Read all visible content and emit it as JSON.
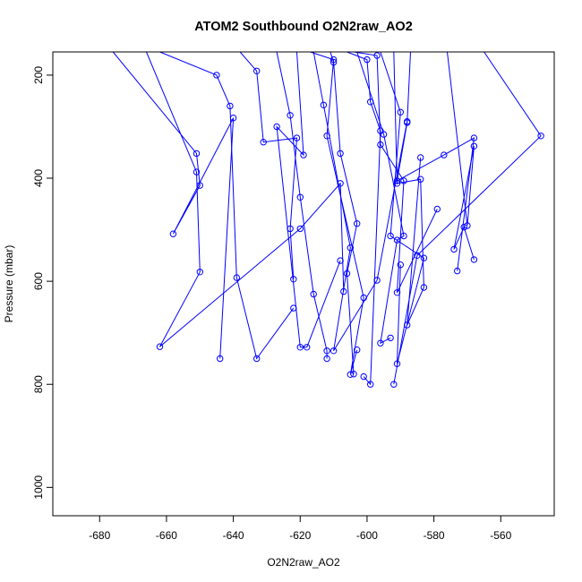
{
  "chart_data": {
    "type": "line",
    "title": "ATOM2 Southbound O2N2raw_AO2",
    "xlabel": "O2N2raw_AO2",
    "ylabel": "Pressure (mbar)",
    "xlim": [
      -694,
      -544
    ],
    "ylim": [
      1055,
      155
    ],
    "y_reversed": true,
    "x_ticks": [
      -680,
      -660,
      -640,
      -620,
      -600,
      -580,
      -560
    ],
    "x_tick_labels": [
      "-680",
      "-660",
      "-640",
      "-620",
      "-600",
      "-580",
      "-560"
    ],
    "y_ticks": [
      200,
      400,
      600,
      800,
      1000
    ],
    "y_tick_labels": [
      "200",
      "400",
      "600",
      "800",
      "1000"
    ],
    "grid": false,
    "legend": "none",
    "line_color": "#0000ff",
    "marker": "open-circle",
    "series": [
      {
        "x": [
          -676,
          -651,
          -650,
          -658,
          -640,
          -644
        ],
        "y": [
          155,
          352,
          414,
          508,
          283,
          750
        ]
      },
      {
        "x": [
          -666,
          -651,
          -650,
          -662,
          -620,
          -608,
          -607
        ],
        "y": [
          155,
          388,
          582,
          727,
          498,
          410,
          620
        ]
      },
      {
        "x": [
          -662,
          -645,
          -641,
          -639,
          -633,
          -622
        ],
        "y": [
          155,
          200,
          260,
          593,
          750,
          652
        ]
      },
      {
        "x": [
          -638,
          -633,
          -631,
          -621,
          -623,
          -622
        ],
        "y": [
          155,
          192,
          330,
          322,
          498,
          596
        ]
      },
      {
        "x": [
          -627,
          -623,
          -620,
          -616,
          -612,
          -612
        ],
        "y": [
          155,
          278,
          437,
          625,
          735,
          750
        ]
      },
      {
        "x": [
          -621,
          -619,
          -627,
          -620,
          -618,
          -608
        ],
        "y": [
          155,
          355,
          300,
          728,
          728,
          560
        ]
      },
      {
        "x": [
          -617,
          -610,
          -612,
          -601,
          -605,
          -603
        ],
        "y": [
          155,
          170,
          318,
          632,
          781,
          733
        ]
      },
      {
        "x": [
          -616,
          -613,
          -605,
          -610,
          -597,
          -588
        ],
        "y": [
          155,
          258,
          535,
          735,
          598,
          290
        ]
      },
      {
        "x": [
          -611,
          -610,
          -608,
          -603,
          -606,
          -604
        ],
        "y": [
          155,
          175,
          352,
          488,
          585,
          780
        ]
      },
      {
        "x": [
          -606,
          -600,
          -599,
          -596,
          -599,
          -601
        ],
        "y": [
          155,
          170,
          252,
          308,
          800,
          785
        ]
      },
      {
        "x": [
          -604,
          -597,
          -596,
          -589,
          -591,
          -579
        ],
        "y": [
          155,
          162,
          335,
          405,
          622,
          460
        ]
      },
      {
        "x": [
          -603,
          -595,
          -589,
          -591,
          -596,
          -593
        ],
        "y": [
          155,
          315,
          512,
          520,
          720,
          710
        ]
      },
      {
        "x": [
          -596,
          -590,
          -593,
          -583,
          -591,
          -590
        ],
        "y": [
          155,
          272,
          512,
          555,
          760,
          568
        ]
      },
      {
        "x": [
          -592,
          -591,
          -584,
          -583,
          -588,
          -584
        ],
        "y": [
          155,
          410,
          402,
          612,
          685,
          360
        ]
      },
      {
        "x": [
          -587,
          -588,
          -591,
          -577,
          -568,
          -573
        ],
        "y": [
          155,
          292,
          405,
          355,
          322,
          580
        ]
      },
      {
        "x": [
          -576,
          -570,
          -568,
          -574,
          -571,
          -568
        ],
        "y": [
          155,
          492,
          338,
          538,
          495,
          558
        ]
      },
      {
        "x": [
          -565,
          -548,
          -585,
          -592
        ],
        "y": [
          155,
          318,
          550,
          800
        ]
      }
    ]
  }
}
